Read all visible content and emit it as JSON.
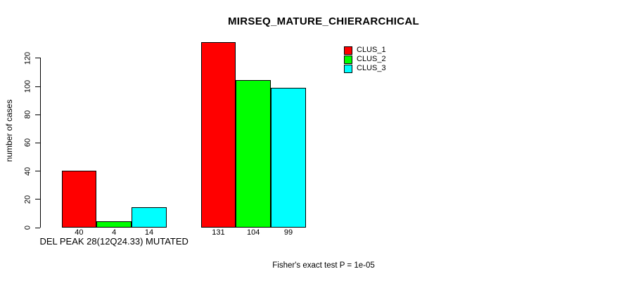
{
  "chart_data": {
    "type": "bar",
    "title": "MIRSEQ_MATURE_CHIERARCHICAL",
    "ylabel": "number of cases",
    "xlabel": "",
    "yticks": [
      0,
      20,
      40,
      60,
      80,
      100,
      120
    ],
    "ylim": [
      0,
      131
    ],
    "grid": false,
    "legend_position": "top-right",
    "series": [
      {
        "name": "CLUS_1",
        "color": "#ff0000"
      },
      {
        "name": "CLUS_2",
        "color": "#00ff00"
      },
      {
        "name": "CLUS_3",
        "color": "#00ffff"
      }
    ],
    "groups": [
      {
        "label": "DEL PEAK 28(12Q24.33) MUTATED",
        "values": [
          40,
          4,
          14
        ]
      },
      {
        "label": "",
        "values": [
          131,
          104,
          99
        ]
      }
    ],
    "bar_value_labels": [
      [
        "40",
        "4",
        "14"
      ],
      [
        "131",
        "104",
        "99"
      ]
    ],
    "annotation": "Fisher's exact test P = 1e-05",
    "colors": {
      "background": "#ffffff",
      "axis": "#000000",
      "text": "#000000",
      "bar_border": "#000000"
    }
  }
}
